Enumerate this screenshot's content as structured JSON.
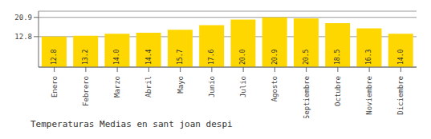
{
  "chart_data": {
    "type": "bar",
    "title": "Temperaturas Medias en sant joan despi",
    "categories": [
      "Enero",
      "Febrero",
      "Marzo",
      "Abril",
      "Mayo",
      "Junio",
      "Julio",
      "Agosto",
      "Septiembre",
      "Octubre",
      "Noviembre",
      "Diciembre"
    ],
    "values": [
      12.8,
      13.2,
      14.0,
      14.4,
      15.7,
      17.6,
      20.0,
      20.9,
      20.5,
      18.5,
      16.3,
      14.0
    ],
    "value_labels": [
      "12.8",
      "13.2",
      "14.0",
      "14.4",
      "15.7",
      "17.6",
      "20.0",
      "20.9",
      "20.5",
      "18.5",
      "16.3",
      "14.0"
    ],
    "color": "#FFD700",
    "ylim": [
      0.0,
      23.5
    ],
    "yticks": [
      12.8,
      20.9
    ],
    "grid": true,
    "data_labels": true
  }
}
